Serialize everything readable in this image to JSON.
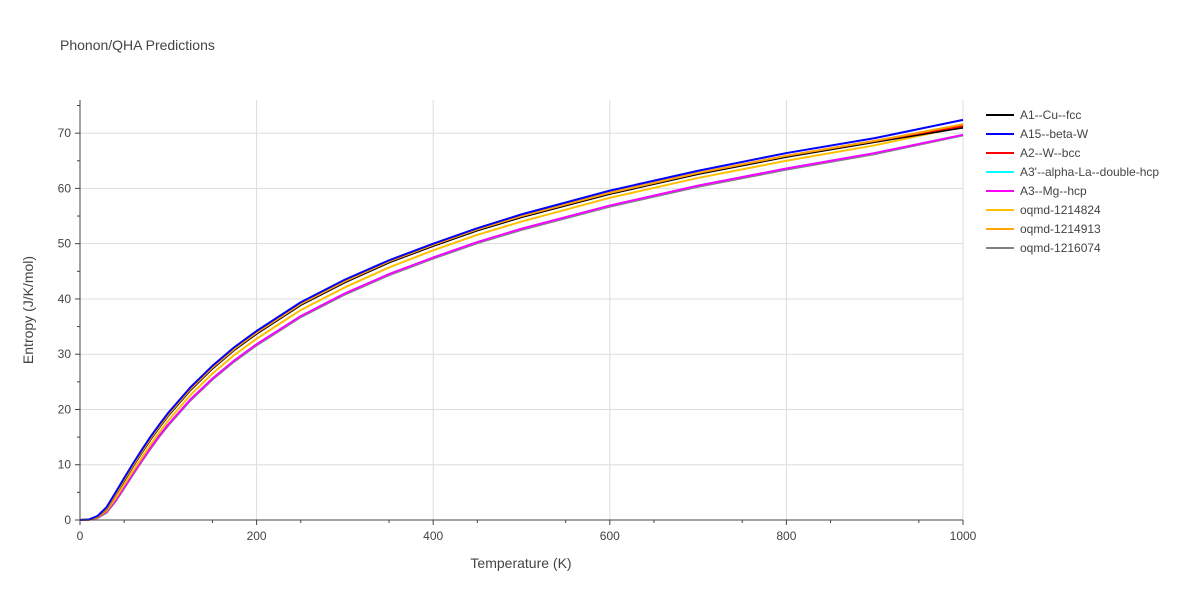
{
  "chart_data": {
    "type": "line",
    "title": "Phonon/QHA Predictions",
    "xlabel": "Temperature (K)",
    "ylabel": "Entropy (J/K/mol)",
    "xlim": [
      0,
      1000
    ],
    "ylim": [
      0,
      76
    ],
    "x_ticks": [
      0,
      200,
      400,
      600,
      800,
      1000
    ],
    "y_ticks": [
      0,
      10,
      20,
      30,
      40,
      50,
      60,
      70
    ],
    "grid": true,
    "legend_position": "right",
    "x": [
      0,
      10,
      20,
      30,
      40,
      50,
      60,
      70,
      80,
      90,
      100,
      125,
      150,
      175,
      200,
      250,
      300,
      350,
      400,
      450,
      500,
      600,
      700,
      800,
      900,
      1000
    ],
    "series": [
      {
        "name": "A1--Cu--fcc",
        "color": "#000000",
        "values": [
          0,
          0.05,
          0.55,
          2.0,
          4.5,
          7.1,
          9.7,
          12.2,
          14.6,
          16.8,
          18.9,
          23.5,
          27.4,
          30.8,
          33.7,
          38.9,
          43.0,
          46.6,
          49.6,
          52.4,
          54.8,
          59.0,
          62.6,
          65.7,
          68.4,
          71.0
        ]
      },
      {
        "name": "A15--beta-W",
        "color": "#0000ff",
        "values": [
          0,
          0.08,
          0.75,
          2.3,
          4.9,
          7.6,
          10.2,
          12.7,
          15.1,
          17.3,
          19.4,
          24.0,
          27.9,
          31.3,
          34.2,
          39.4,
          43.5,
          47.0,
          50.0,
          52.8,
          55.3,
          59.6,
          63.2,
          66.4,
          69.1,
          72.4
        ]
      },
      {
        "name": "A2--W--bcc",
        "color": "#ff0000",
        "values": [
          0,
          0.06,
          0.6,
          2.1,
          4.6,
          7.3,
          9.9,
          12.4,
          14.8,
          17.0,
          19.1,
          23.7,
          27.6,
          31.0,
          33.9,
          39.1,
          43.2,
          46.8,
          49.8,
          52.6,
          55.0,
          59.2,
          62.8,
          65.9,
          68.6,
          71.3
        ]
      },
      {
        "name": "A3'--alpha-La--double-hcp",
        "color": "#00ffff",
        "values": [
          0,
          0.04,
          0.4,
          1.5,
          3.5,
          5.9,
          8.4,
          10.8,
          13.1,
          15.3,
          17.3,
          21.8,
          25.6,
          28.9,
          31.8,
          36.9,
          41.0,
          44.5,
          47.5,
          50.3,
          52.7,
          56.9,
          60.5,
          63.6,
          66.4,
          69.7
        ]
      },
      {
        "name": "A3--Mg--hcp",
        "color": "#ff00ff",
        "values": [
          0,
          0.04,
          0.4,
          1.5,
          3.5,
          5.9,
          8.4,
          10.8,
          13.1,
          15.3,
          17.3,
          21.8,
          25.6,
          28.9,
          31.8,
          36.9,
          41.0,
          44.5,
          47.5,
          50.3,
          52.7,
          56.9,
          60.5,
          63.6,
          66.4,
          69.7
        ]
      },
      {
        "name": "oqmd-1214824",
        "color": "#ffc000",
        "values": [
          0,
          0.05,
          0.45,
          1.7,
          3.9,
          6.4,
          8.9,
          11.3,
          13.7,
          15.9,
          18.0,
          22.6,
          26.5,
          29.9,
          32.8,
          38.0,
          42.1,
          45.7,
          48.8,
          51.6,
          54.0,
          58.3,
          61.9,
          65.0,
          67.8,
          71.2
        ]
      },
      {
        "name": "oqmd-1214913",
        "color": "#ffa500",
        "values": [
          0,
          0.06,
          0.6,
          2.1,
          4.6,
          7.3,
          9.9,
          12.4,
          14.8,
          17.0,
          19.1,
          23.7,
          27.6,
          31.0,
          33.9,
          39.1,
          43.2,
          46.8,
          49.8,
          52.6,
          55.0,
          59.2,
          62.8,
          65.9,
          68.6,
          71.6
        ]
      },
      {
        "name": "oqmd-1216074",
        "color": "#808080",
        "values": [
          0,
          0.03,
          0.35,
          1.3,
          3.3,
          5.7,
          8.2,
          10.6,
          12.9,
          15.1,
          17.1,
          21.6,
          25.4,
          28.7,
          31.6,
          36.7,
          40.8,
          44.3,
          47.3,
          50.1,
          52.5,
          56.7,
          60.3,
          63.4,
          66.2,
          69.6
        ]
      }
    ]
  }
}
